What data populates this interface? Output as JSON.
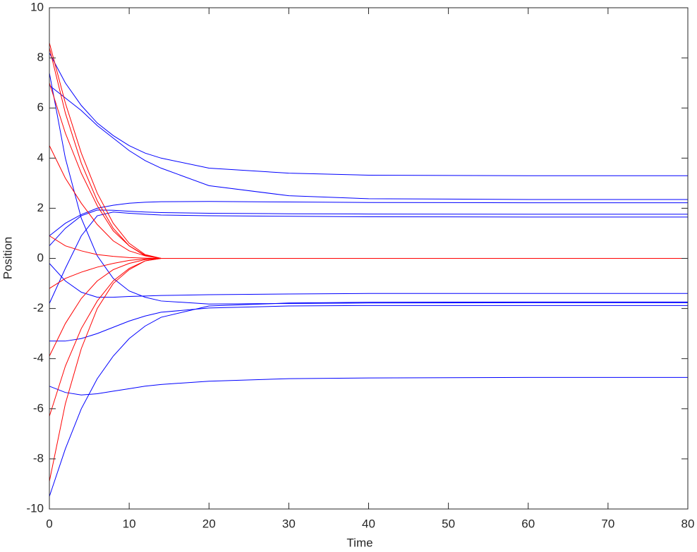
{
  "chart_data": {
    "type": "line",
    "xlabel": "Time",
    "ylabel": "Position",
    "x": [
      0,
      2,
      4,
      6,
      8,
      10,
      12,
      14,
      20,
      30,
      40,
      60,
      80
    ],
    "xlim": [
      0,
      80
    ],
    "xticks": [
      0,
      10,
      20,
      30,
      40,
      50,
      60,
      70,
      80
    ],
    "ylim": [
      -10,
      10
    ],
    "yticks": [
      -10,
      -8,
      -6,
      -4,
      -2,
      0,
      2,
      4,
      6,
      8,
      10
    ],
    "grid": false,
    "series": [
      {
        "color": "#0000ff",
        "values": [
          8.2,
          7.0,
          6.1,
          5.4,
          4.9,
          4.5,
          4.2,
          4.0,
          3.6,
          3.4,
          3.32,
          3.3,
          3.3
        ]
      },
      {
        "color": "#0000ff",
        "values": [
          6.9,
          6.4,
          5.9,
          5.3,
          4.8,
          4.3,
          3.9,
          3.6,
          2.9,
          2.5,
          2.38,
          2.35,
          2.35
        ]
      },
      {
        "color": "#0000ff",
        "values": [
          0.9,
          1.4,
          1.75,
          2.0,
          2.12,
          2.2,
          2.24,
          2.26,
          2.27,
          2.25,
          2.23,
          2.22,
          2.22
        ]
      },
      {
        "color": "#0000ff",
        "values": [
          0.5,
          1.2,
          1.7,
          1.93,
          1.92,
          1.88,
          1.85,
          1.83,
          1.8,
          1.78,
          1.77,
          1.76,
          1.76
        ]
      },
      {
        "color": "#0000ff",
        "values": [
          -1.8,
          -0.4,
          0.9,
          1.7,
          1.85,
          1.8,
          1.76,
          1.73,
          1.7,
          1.68,
          1.66,
          1.65,
          1.65
        ]
      },
      {
        "color": "#0000ff",
        "values": [
          7.4,
          4.0,
          1.6,
          0.1,
          -0.8,
          -1.3,
          -1.55,
          -1.7,
          -1.82,
          -1.8,
          -1.78,
          -1.77,
          -1.77
        ]
      },
      {
        "color": "#0000ff",
        "values": [
          -0.2,
          -0.9,
          -1.35,
          -1.55,
          -1.55,
          -1.52,
          -1.5,
          -1.48,
          -1.45,
          -1.42,
          -1.4,
          -1.4,
          -1.4
        ]
      },
      {
        "color": "#0000ff",
        "values": [
          -3.3,
          -3.3,
          -3.2,
          -3.0,
          -2.75,
          -2.5,
          -2.3,
          -2.15,
          -1.98,
          -1.9,
          -1.88,
          -1.88,
          -1.88
        ]
      },
      {
        "color": "#0000ff",
        "values": [
          -9.5,
          -7.6,
          -6.0,
          -4.8,
          -3.9,
          -3.2,
          -2.7,
          -2.35,
          -1.9,
          -1.78,
          -1.75,
          -1.74,
          -1.74
        ]
      },
      {
        "color": "#0000ff",
        "values": [
          -5.1,
          -5.35,
          -5.45,
          -5.4,
          -5.3,
          -5.2,
          -5.1,
          -5.03,
          -4.9,
          -4.8,
          -4.77,
          -4.75,
          -4.75
        ]
      },
      {
        "color": "#ff0000",
        "values": [
          8.6,
          6.2,
          4.2,
          2.6,
          1.4,
          0.6,
          0.15,
          0,
          0,
          0,
          0,
          0,
          0
        ]
      },
      {
        "color": "#ff0000",
        "values": [
          8.4,
          5.8,
          3.8,
          2.3,
          1.2,
          0.5,
          0.12,
          0,
          0,
          0,
          0,
          0,
          0
        ]
      },
      {
        "color": "#ff0000",
        "values": [
          7.0,
          5.0,
          3.4,
          2.1,
          1.1,
          0.5,
          0.1,
          0,
          0,
          0,
          0,
          0,
          0
        ]
      },
      {
        "color": "#ff0000",
        "values": [
          4.5,
          3.2,
          2.2,
          1.35,
          0.7,
          0.3,
          0.1,
          0,
          0,
          0,
          0,
          0,
          0
        ]
      },
      {
        "color": "#ff0000",
        "values": [
          0.9,
          0.5,
          0.3,
          0.15,
          0.08,
          0.03,
          0.01,
          0,
          0,
          0,
          0,
          0,
          0
        ]
      },
      {
        "color": "#ff0000",
        "values": [
          -1.2,
          -0.8,
          -0.55,
          -0.35,
          -0.2,
          -0.08,
          -0.02,
          0,
          0,
          0,
          0,
          0,
          0
        ]
      },
      {
        "color": "#ff0000",
        "values": [
          -3.9,
          -2.6,
          -1.6,
          -0.9,
          -0.45,
          -0.2,
          -0.05,
          0,
          0,
          0,
          0,
          0,
          0
        ]
      },
      {
        "color": "#ff0000",
        "values": [
          -6.3,
          -4.3,
          -2.8,
          -1.7,
          -0.9,
          -0.4,
          -0.1,
          0,
          0,
          0,
          0,
          0,
          0
        ]
      },
      {
        "color": "#ff0000",
        "values": [
          -8.9,
          -5.8,
          -3.6,
          -2.0,
          -1.0,
          -0.45,
          -0.1,
          0,
          0,
          0,
          0,
          0,
          0
        ]
      }
    ]
  }
}
